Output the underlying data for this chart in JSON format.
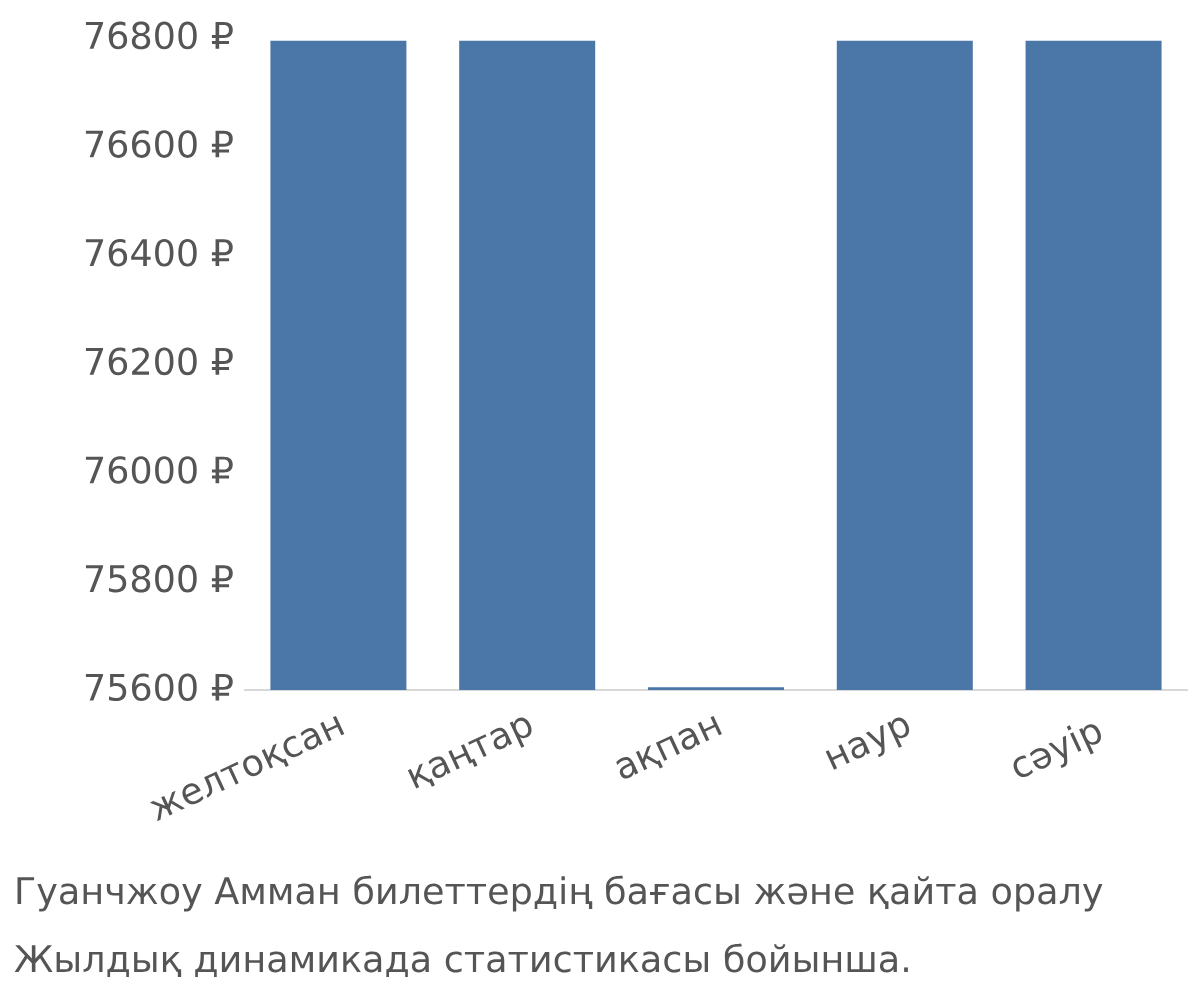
{
  "chart_data": {
    "type": "bar",
    "categories": [
      "желтоқсан",
      "қаңтар",
      "ақпан",
      "наур",
      "сәуір"
    ],
    "values": [
      76790,
      76790,
      75600,
      76790,
      76790
    ],
    "color": "#4a76a8",
    "ylim": [
      75595,
      76810
    ],
    "yticks": [
      {
        "value": 75600,
        "label": "75600 ₽"
      },
      {
        "value": 75800,
        "label": "75800 ₽"
      },
      {
        "value": 76000,
        "label": "76000 ₽"
      },
      {
        "value": 76200,
        "label": "76200 ₽"
      },
      {
        "value": 76400,
        "label": "76400 ₽"
      },
      {
        "value": 76600,
        "label": "76600 ₽"
      },
      {
        "value": 76800,
        "label": "76800 ₽"
      }
    ],
    "annotations": [
      "Гуанчжоу Амман билеттердің бағасы және қайта оралу",
      "Жылдық динамикада статистикасы бойынша."
    ]
  }
}
